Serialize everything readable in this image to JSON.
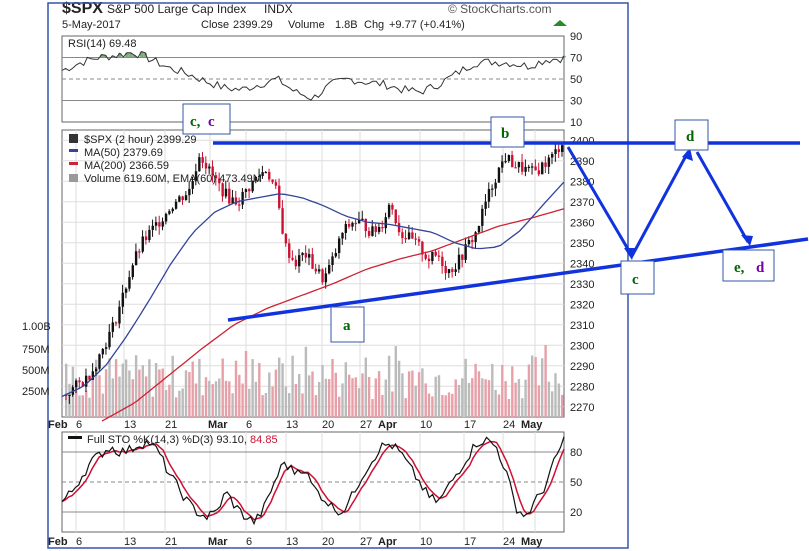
{
  "header": {
    "symbol": "$SPX",
    "name": "S&P 500 Large Cap Index",
    "exchange": "INDX",
    "date": "5-May-2017",
    "close_label": "Close",
    "close": "2399.29",
    "volume_label": "Volume",
    "volume": "1.8B",
    "chg_label": "Chg",
    "chg": "+9.77 (+0.41%)",
    "watermark": "© StockCharts.com"
  },
  "colors": {
    "frame": "#3355aa",
    "grid": "#dddddd",
    "price_up": "#111111",
    "price_down": "#cc1133",
    "ma50": "#334499",
    "ma200": "#cc2233",
    "volume_up": "#bbbbbb",
    "volume_down": "#e8a0a8",
    "annotation_line": "#1133dd",
    "label_green": "#006600",
    "label_purple": "#7700aa"
  },
  "chart_data": [
    {
      "panel": "rsi",
      "type": "line",
      "legend": "RSI(14) 69.48",
      "ylim": [
        10,
        90
      ],
      "yticks": [
        "90",
        "70",
        "50",
        "30",
        "10"
      ],
      "approx_series": [
        58,
        65,
        70,
        72,
        75,
        68,
        60,
        55,
        48,
        42,
        40,
        45,
        50,
        38,
        32,
        45,
        50,
        47,
        45,
        40,
        38,
        45,
        55,
        65,
        66,
        65,
        62,
        68,
        69.48
      ]
    },
    {
      "panel": "price",
      "type": "candlestick",
      "legend": [
        "$SPX (2 hour) 2399.29",
        "MA(50) 2379.69",
        "MA(200) 2366.59",
        "Volume 619.60M, EMA(60) 473.49M"
      ],
      "ylim": [
        2265,
        2405
      ],
      "yticks": [
        "2400",
        "2390",
        "2380",
        "2370",
        "2360",
        "2350",
        "2340",
        "2330",
        "2320",
        "2310",
        "2300",
        "2290",
        "2280",
        "2270"
      ],
      "volume_ticks": [
        "1.00B",
        "750M",
        "500M",
        "250M"
      ],
      "approx_close": [
        2276,
        2280,
        2283,
        2290,
        2300,
        2310,
        2325,
        2340,
        2350,
        2356,
        2362,
        2368,
        2372,
        2376,
        2394,
        2385,
        2378,
        2372,
        2370,
        2376,
        2382,
        2386,
        2375,
        2348,
        2340,
        2345,
        2338,
        2332,
        2342,
        2355,
        2360,
        2360,
        2355,
        2358,
        2370,
        2355,
        2352,
        2348,
        2342,
        2344,
        2336,
        2340,
        2348,
        2355,
        2370,
        2382,
        2392,
        2388,
        2386,
        2384,
        2388,
        2392,
        2399.29
      ],
      "approx_ma50": [
        2275,
        2280,
        2290,
        2305,
        2322,
        2340,
        2355,
        2365,
        2370,
        2372,
        2374,
        2372,
        2368,
        2363,
        2360,
        2359,
        2357,
        2355,
        2350,
        2347,
        2348,
        2356,
        2368,
        2379.69
      ],
      "approx_ma200": [
        2263,
        2272,
        2285,
        2298,
        2310,
        2318,
        2324,
        2330,
        2337,
        2342,
        2346,
        2352,
        2358,
        2362,
        2366.59
      ],
      "annotations": {
        "a": "a",
        "b": "b",
        "c_top_1": "c,",
        "c_top_2": "c",
        "c_right": "c",
        "d_right": "d",
        "e_right_1": "e,",
        "e_right_2": "d"
      }
    },
    {
      "panel": "stochastic",
      "type": "line",
      "legend_prefix": "Full STO %K(14,3) %D(3) 93.10,",
      "legend_value2": "84.85",
      "ylim": [
        0,
        100
      ],
      "yticks": [
        "80",
        "50",
        "20"
      ],
      "approx_k": [
        30,
        40,
        55,
        70,
        78,
        85,
        80,
        82,
        88,
        90,
        80,
        60,
        45,
        30,
        20,
        15,
        20,
        40,
        25,
        15,
        10,
        25,
        50,
        70,
        60,
        65,
        45,
        35,
        25,
        20,
        35,
        55,
        70,
        85,
        88,
        80,
        65,
        50,
        35,
        30,
        45,
        60,
        75,
        90,
        92,
        85,
        60,
        25,
        15,
        30,
        45,
        70,
        93.1
      ]
    }
  ],
  "xaxis": {
    "ticks": [
      "Feb",
      "6",
      "13",
      "21",
      "Mar",
      "6",
      "13",
      "20",
      "27",
      "Apr",
      "10",
      "17",
      "24",
      "May"
    ]
  }
}
